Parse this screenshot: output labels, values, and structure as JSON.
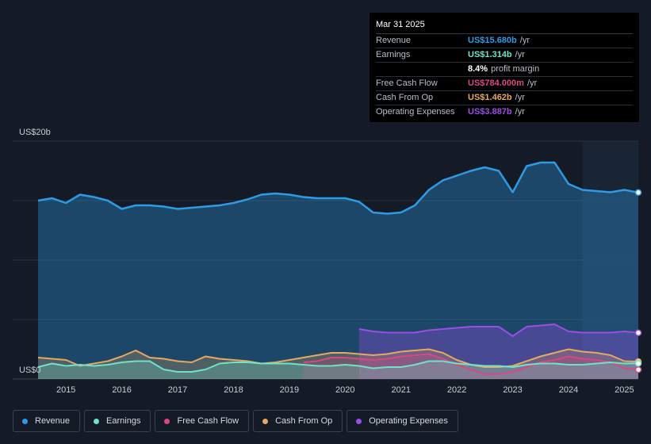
{
  "colors": {
    "revenue": "#2d9be6",
    "earnings": "#6fe3c8",
    "free_cash_flow": "#d9487e",
    "cash_from_op": "#e8a85f",
    "operating_expenses": "#9a4ee6"
  },
  "tooltip": {
    "date": "Mar 31 2025",
    "rows": [
      {
        "label": "Revenue",
        "value": "US$15.680b",
        "unit": "/yr",
        "color": "#2d9be6"
      },
      {
        "label": "Earnings",
        "value": "US$1.314b",
        "unit": "/yr",
        "color": "#6fe3c8"
      },
      {
        "label": "",
        "value": "8.4%",
        "unit": "profit margin",
        "color": "#ffffff"
      },
      {
        "label": "Free Cash Flow",
        "value": "US$784.000m",
        "unit": "/yr",
        "color": "#d9487e"
      },
      {
        "label": "Cash From Op",
        "value": "US$1.462b",
        "unit": "/yr",
        "color": "#e8a85f"
      },
      {
        "label": "Operating Expenses",
        "value": "US$3.887b",
        "unit": "/yr",
        "color": "#9a4ee6"
      }
    ]
  },
  "legend": [
    {
      "label": "Revenue",
      "color": "#2d9be6"
    },
    {
      "label": "Earnings",
      "color": "#6fe3c8"
    },
    {
      "label": "Free Cash Flow",
      "color": "#d9487e"
    },
    {
      "label": "Cash From Op",
      "color": "#e8a85f"
    },
    {
      "label": "Operating Expenses",
      "color": "#9a4ee6"
    }
  ],
  "chart_data": {
    "type": "area",
    "y_top_label": "US$20b",
    "y_zero_label": "US$0",
    "ylim": [
      0,
      20
    ],
    "xlim": [
      2014.5,
      2025.25
    ],
    "x_ticks": [
      "2015",
      "2016",
      "2017",
      "2018",
      "2019",
      "2020",
      "2021",
      "2022",
      "2023",
      "2024",
      "2025"
    ],
    "highlight_from": 2024.25,
    "series": [
      {
        "name": "Revenue",
        "key": "revenue",
        "points": [
          [
            2014.5,
            15.0
          ],
          [
            2014.75,
            15.2
          ],
          [
            2015.0,
            14.8
          ],
          [
            2015.25,
            15.5
          ],
          [
            2015.5,
            15.3
          ],
          [
            2015.75,
            15.0
          ],
          [
            2016.0,
            14.3
          ],
          [
            2016.25,
            14.6
          ],
          [
            2016.5,
            14.6
          ],
          [
            2016.75,
            14.5
          ],
          [
            2017.0,
            14.3
          ],
          [
            2017.25,
            14.4
          ],
          [
            2017.5,
            14.5
          ],
          [
            2017.75,
            14.6
          ],
          [
            2018.0,
            14.8
          ],
          [
            2018.25,
            15.1
          ],
          [
            2018.5,
            15.5
          ],
          [
            2018.75,
            15.6
          ],
          [
            2019.0,
            15.5
          ],
          [
            2019.25,
            15.3
          ],
          [
            2019.5,
            15.2
          ],
          [
            2019.75,
            15.2
          ],
          [
            2020.0,
            15.2
          ],
          [
            2020.25,
            14.9
          ],
          [
            2020.5,
            14.0
          ],
          [
            2020.75,
            13.9
          ],
          [
            2021.0,
            14.0
          ],
          [
            2021.25,
            14.6
          ],
          [
            2021.5,
            15.9
          ],
          [
            2021.75,
            16.7
          ],
          [
            2022.0,
            17.1
          ],
          [
            2022.25,
            17.5
          ],
          [
            2022.5,
            17.8
          ],
          [
            2022.75,
            17.5
          ],
          [
            2023.0,
            15.7
          ],
          [
            2023.25,
            17.9
          ],
          [
            2023.5,
            18.2
          ],
          [
            2023.75,
            18.2
          ],
          [
            2024.0,
            16.4
          ],
          [
            2024.25,
            15.9
          ],
          [
            2024.5,
            15.8
          ],
          [
            2024.75,
            15.7
          ],
          [
            2025.0,
            15.9
          ],
          [
            2025.25,
            15.68
          ]
        ]
      },
      {
        "name": "Operating Expenses",
        "key": "operating_expenses",
        "points": [
          [
            2020.25,
            4.2
          ],
          [
            2020.5,
            4.0
          ],
          [
            2020.75,
            3.9
          ],
          [
            2021.0,
            3.9
          ],
          [
            2021.25,
            3.9
          ],
          [
            2021.5,
            4.1
          ],
          [
            2021.75,
            4.2
          ],
          [
            2022.0,
            4.3
          ],
          [
            2022.25,
            4.4
          ],
          [
            2022.5,
            4.4
          ],
          [
            2022.75,
            4.4
          ],
          [
            2023.0,
            3.6
          ],
          [
            2023.25,
            4.4
          ],
          [
            2023.5,
            4.5
          ],
          [
            2023.75,
            4.6
          ],
          [
            2024.0,
            4.0
          ],
          [
            2024.25,
            3.9
          ],
          [
            2024.5,
            3.9
          ],
          [
            2024.75,
            3.9
          ],
          [
            2025.0,
            4.0
          ],
          [
            2025.25,
            3.887
          ]
        ]
      },
      {
        "name": "Cash From Op",
        "key": "cash_from_op",
        "points": [
          [
            2014.5,
            1.8
          ],
          [
            2014.75,
            1.7
          ],
          [
            2015.0,
            1.6
          ],
          [
            2015.25,
            1.1
          ],
          [
            2015.5,
            1.3
          ],
          [
            2015.75,
            1.5
          ],
          [
            2016.0,
            1.9
          ],
          [
            2016.25,
            2.4
          ],
          [
            2016.5,
            1.8
          ],
          [
            2016.75,
            1.7
          ],
          [
            2017.0,
            1.5
          ],
          [
            2017.25,
            1.4
          ],
          [
            2017.5,
            1.9
          ],
          [
            2017.75,
            1.7
          ],
          [
            2018.0,
            1.6
          ],
          [
            2018.25,
            1.5
          ],
          [
            2018.5,
            1.3
          ],
          [
            2018.75,
            1.4
          ],
          [
            2019.0,
            1.6
          ],
          [
            2019.25,
            1.8
          ],
          [
            2019.5,
            2.0
          ],
          [
            2019.75,
            2.2
          ],
          [
            2020.0,
            2.2
          ],
          [
            2020.25,
            2.1
          ],
          [
            2020.5,
            2.0
          ],
          [
            2020.75,
            2.1
          ],
          [
            2021.0,
            2.3
          ],
          [
            2021.25,
            2.4
          ],
          [
            2021.5,
            2.5
          ],
          [
            2021.75,
            2.2
          ],
          [
            2022.0,
            1.6
          ],
          [
            2022.25,
            1.2
          ],
          [
            2022.5,
            1.0
          ],
          [
            2022.75,
            1.0
          ],
          [
            2023.0,
            1.1
          ],
          [
            2023.25,
            1.5
          ],
          [
            2023.5,
            1.9
          ],
          [
            2023.75,
            2.2
          ],
          [
            2024.0,
            2.5
          ],
          [
            2024.25,
            2.3
          ],
          [
            2024.5,
            2.2
          ],
          [
            2024.75,
            2.0
          ],
          [
            2025.0,
            1.5
          ],
          [
            2025.25,
            1.462
          ]
        ]
      },
      {
        "name": "Free Cash Flow",
        "key": "free_cash_flow",
        "points": [
          [
            2019.25,
            1.4
          ],
          [
            2019.5,
            1.5
          ],
          [
            2019.75,
            1.8
          ],
          [
            2020.0,
            1.8
          ],
          [
            2020.25,
            1.7
          ],
          [
            2020.5,
            1.6
          ],
          [
            2020.75,
            1.7
          ],
          [
            2021.0,
            1.9
          ],
          [
            2021.25,
            2.0
          ],
          [
            2021.5,
            2.1
          ],
          [
            2021.75,
            1.7
          ],
          [
            2022.0,
            1.2
          ],
          [
            2022.25,
            0.8
          ],
          [
            2022.5,
            0.4
          ],
          [
            2022.75,
            0.4
          ],
          [
            2023.0,
            0.6
          ],
          [
            2023.25,
            1.0
          ],
          [
            2023.5,
            1.4
          ],
          [
            2023.75,
            1.6
          ],
          [
            2024.0,
            1.9
          ],
          [
            2024.25,
            1.7
          ],
          [
            2024.5,
            1.6
          ],
          [
            2024.75,
            1.4
          ],
          [
            2025.0,
            0.9
          ],
          [
            2025.25,
            0.784
          ]
        ]
      },
      {
        "name": "Earnings",
        "key": "earnings",
        "points": [
          [
            2014.5,
            1.0
          ],
          [
            2014.75,
            1.3
          ],
          [
            2015.0,
            1.1
          ],
          [
            2015.25,
            1.2
          ],
          [
            2015.5,
            1.1
          ],
          [
            2015.75,
            1.2
          ],
          [
            2016.0,
            1.4
          ],
          [
            2016.25,
            1.5
          ],
          [
            2016.5,
            1.5
          ],
          [
            2016.75,
            0.8
          ],
          [
            2017.0,
            0.6
          ],
          [
            2017.25,
            0.6
          ],
          [
            2017.5,
            0.8
          ],
          [
            2017.75,
            1.3
          ],
          [
            2018.0,
            1.4
          ],
          [
            2018.25,
            1.4
          ],
          [
            2018.5,
            1.3
          ],
          [
            2018.75,
            1.3
          ],
          [
            2019.0,
            1.3
          ],
          [
            2019.25,
            1.2
          ],
          [
            2019.5,
            1.1
          ],
          [
            2019.75,
            1.1
          ],
          [
            2020.0,
            1.2
          ],
          [
            2020.25,
            1.1
          ],
          [
            2020.5,
            0.9
          ],
          [
            2020.75,
            1.0
          ],
          [
            2021.0,
            1.0
          ],
          [
            2021.25,
            1.2
          ],
          [
            2021.5,
            1.5
          ],
          [
            2021.75,
            1.5
          ],
          [
            2022.0,
            1.3
          ],
          [
            2022.25,
            1.2
          ],
          [
            2022.5,
            1.1
          ],
          [
            2022.75,
            1.1
          ],
          [
            2023.0,
            1.0
          ],
          [
            2023.25,
            1.2
          ],
          [
            2023.5,
            1.3
          ],
          [
            2023.75,
            1.3
          ],
          [
            2024.0,
            1.2
          ],
          [
            2024.25,
            1.2
          ],
          [
            2024.5,
            1.3
          ],
          [
            2024.75,
            1.4
          ],
          [
            2025.0,
            1.3
          ],
          [
            2025.25,
            1.314
          ]
        ]
      }
    ]
  }
}
